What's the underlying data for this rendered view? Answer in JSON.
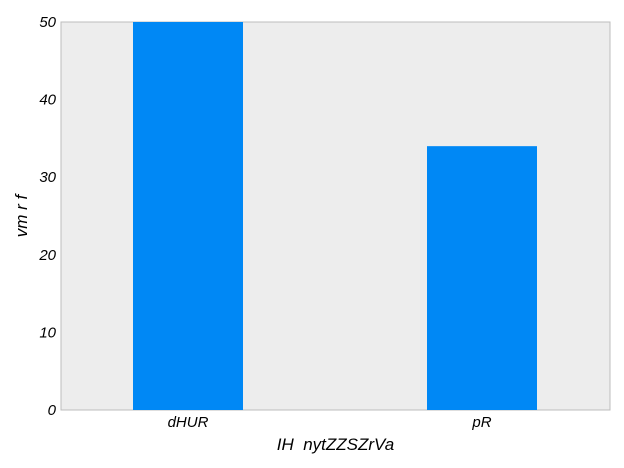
{
  "chart_data": {
    "type": "bar",
    "categories": [
      "dHUR",
      "pR"
    ],
    "values": [
      50,
      34
    ],
    "title": "",
    "xlabel": "IH  nytZZSZrVa",
    "ylabel": "vm r f",
    "ylim": [
      0,
      50
    ],
    "yticks": [
      0,
      10,
      20,
      30,
      40,
      50
    ],
    "grid": false,
    "legend": "none",
    "colors": {
      "bar": "#0088f5",
      "plot_background": "#ededed",
      "frame": "#bdbdbd"
    }
  }
}
